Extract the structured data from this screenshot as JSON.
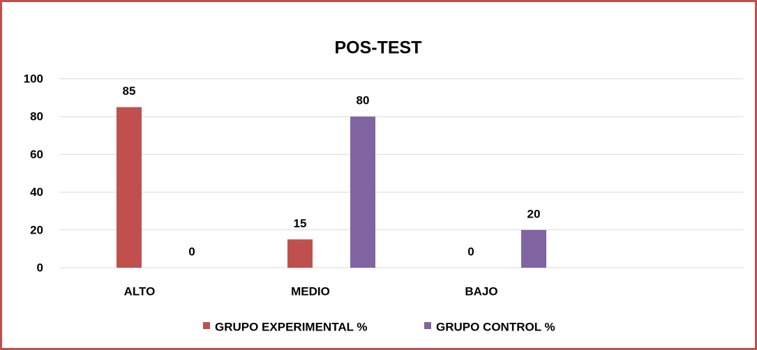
{
  "chart_data": {
    "type": "bar",
    "title": "POS-TEST",
    "categories": [
      "ALTO",
      "MEDIO",
      "BAJO",
      null
    ],
    "series": [
      {
        "name": "GRUPO EXPERIMENTAL %",
        "color": "#c0504d",
        "values": [
          85,
          15,
          0,
          null
        ]
      },
      {
        "name": "GRUPO CONTROL %",
        "color": "#8064a2",
        "values": [
          0,
          80,
          20,
          null
        ]
      }
    ],
    "ylim": [
      0,
      100
    ],
    "yticks": [
      0,
      20,
      40,
      60,
      80,
      100
    ],
    "grid": true,
    "legend": "bottom"
  }
}
